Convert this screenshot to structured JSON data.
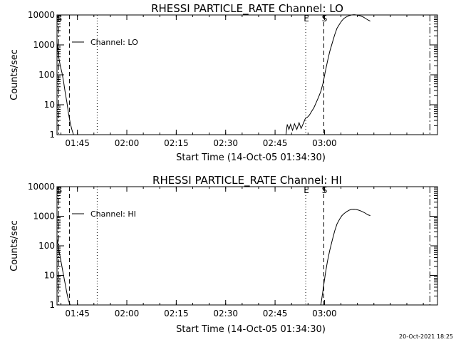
{
  "footer_timestamp": "20-Oct-2021 18:25",
  "chart_data": [
    {
      "type": "line",
      "title": "RHESSI PARTICLE_RATE Channel: LO",
      "xlabel": "Start Time (14-Oct-05 01:34:30)",
      "ylabel": "Counts/sec",
      "yscale": "log",
      "ylim": [
        1,
        10000
      ],
      "xlim_minutes_after_0130": [
        8.8,
        124.3
      ],
      "x_ticks": [
        {
          "t": 15,
          "label": "01:45"
        },
        {
          "t": 30,
          "label": "02:00"
        },
        {
          "t": 45,
          "label": "02:15"
        },
        {
          "t": 60,
          "label": "02:30"
        },
        {
          "t": 75,
          "label": "02:45"
        },
        {
          "t": 90,
          "label": "03:00"
        }
      ],
      "y_ticks": [
        {
          "v": 1,
          "label": "1"
        },
        {
          "v": 10,
          "label": "10"
        },
        {
          "v": 100,
          "label": "100"
        },
        {
          "v": 1000,
          "label": "1000"
        },
        {
          "v": 10000,
          "label": "10000"
        }
      ],
      "legend": "Channel: LO",
      "markers": [
        {
          "t": 9.3,
          "style": "dash-dot",
          "label": "S"
        },
        {
          "t": 12.6,
          "style": "dashed",
          "label": ""
        },
        {
          "t": 21.0,
          "style": "dotted",
          "label": ""
        },
        {
          "t": 84.3,
          "style": "dotted",
          "label": "E"
        },
        {
          "t": 89.8,
          "style": "dashed",
          "label": "S"
        },
        {
          "t": 122.0,
          "style": "dash-dot",
          "label": ""
        }
      ],
      "series": [
        {
          "x": [
            8.8,
            9.3,
            9.8,
            10.3,
            10.8,
            11.3,
            11.8,
            12.3,
            12.8,
            13.3,
            13.8
          ],
          "y": [
            1200,
            400,
            200,
            120,
            60,
            25,
            12,
            5,
            2.5,
            1.5,
            1
          ]
        },
        {
          "x": [
            78.3,
            78.7,
            79.2,
            79.7,
            80.3,
            80.9,
            81.6,
            82.3,
            82.9,
            83.6,
            84.2,
            84.8,
            85.4,
            86.1,
            86.8,
            87.5,
            88.2,
            88.9,
            89.6,
            90.2,
            90.9,
            91.6,
            92.4,
            93.1,
            93.8,
            94.6,
            95.3,
            96.0,
            96.8,
            97.5,
            98.2,
            99.0,
            99.7,
            100.4,
            101.1,
            101.8,
            102.5,
            103.2,
            103.9
          ],
          "y": [
            1,
            2.2,
            1.5,
            2.2,
            1.4,
            2.3,
            1.5,
            2.5,
            1.6,
            2.4,
            3.5,
            3.8,
            4.5,
            6,
            8,
            12,
            18,
            28,
            55,
            120,
            280,
            600,
            1200,
            2200,
            3600,
            5000,
            6500,
            7800,
            8800,
            9500,
            10000,
            10200,
            10000,
            9700,
            9200,
            8500,
            7600,
            6800,
            6200
          ]
        }
      ]
    },
    {
      "type": "line",
      "title": "RHESSI PARTICLE_RATE Channel: HI",
      "xlabel": "Start Time (14-Oct-05 01:34:30)",
      "ylabel": "Counts/sec",
      "yscale": "log",
      "ylim": [
        1,
        10000
      ],
      "xlim_minutes_after_0130": [
        8.8,
        124.3
      ],
      "x_ticks": [
        {
          "t": 15,
          "label": "01:45"
        },
        {
          "t": 30,
          "label": "02:00"
        },
        {
          "t": 45,
          "label": "02:15"
        },
        {
          "t": 60,
          "label": "02:30"
        },
        {
          "t": 75,
          "label": "02:45"
        },
        {
          "t": 90,
          "label": "03:00"
        }
      ],
      "y_ticks": [
        {
          "v": 1,
          "label": "1"
        },
        {
          "v": 10,
          "label": "10"
        },
        {
          "v": 100,
          "label": "100"
        },
        {
          "v": 1000,
          "label": "1000"
        },
        {
          "v": 10000,
          "label": "10000"
        }
      ],
      "legend": "Channel: HI",
      "markers": [
        {
          "t": 9.3,
          "style": "dash-dot",
          "label": "S"
        },
        {
          "t": 12.6,
          "style": "dashed",
          "label": ""
        },
        {
          "t": 21.0,
          "style": "dotted",
          "label": ""
        },
        {
          "t": 84.3,
          "style": "dotted",
          "label": "E"
        },
        {
          "t": 89.8,
          "style": "dashed",
          "label": "S"
        },
        {
          "t": 122.0,
          "style": "dash-dot",
          "label": ""
        }
      ],
      "series": [
        {
          "x": [
            8.8,
            9.3,
            9.8,
            10.3,
            10.8,
            11.3,
            11.8,
            12.3,
            12.8
          ],
          "y": [
            180,
            80,
            40,
            20,
            10,
            5,
            2.5,
            1.4,
            1
          ]
        },
        {
          "x": [
            88.9,
            89.3,
            89.8,
            90.3,
            90.9,
            91.6,
            92.4,
            93.1,
            93.8,
            94.6,
            95.3,
            96.0,
            96.8,
            97.5,
            98.2,
            99.0,
            99.7,
            100.4,
            101.1,
            101.8,
            102.5,
            103.2,
            103.9
          ],
          "y": [
            1,
            2,
            5,
            12,
            30,
            70,
            160,
            320,
            550,
            800,
            1050,
            1250,
            1450,
            1600,
            1700,
            1720,
            1680,
            1600,
            1500,
            1380,
            1250,
            1120,
            1050
          ]
        }
      ]
    }
  ]
}
